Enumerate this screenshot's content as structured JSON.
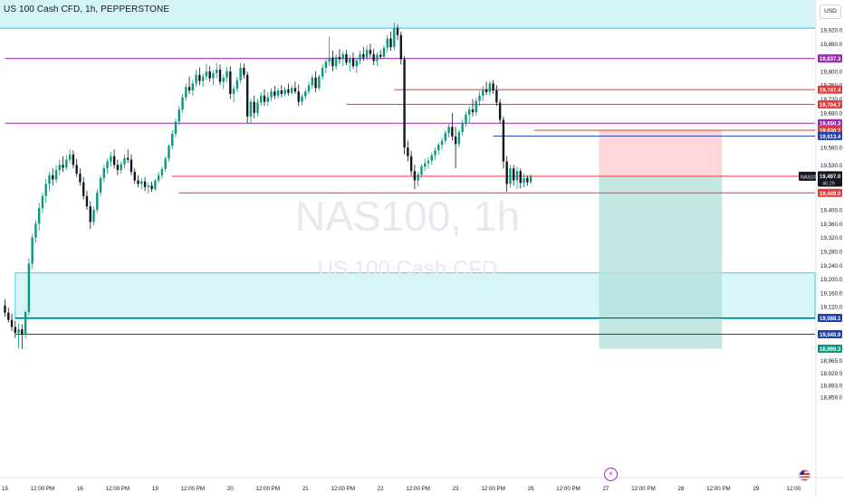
{
  "header": {
    "title": "US 100 Cash CFD, 1h, PEPPERSTONE",
    "currency": "USD",
    "watermark_symbol": "NAS100, 1h",
    "watermark_name": "US 100 Cash CFD"
  },
  "colors": {
    "up": "#089981",
    "down": "#131722",
    "demand_zone": "#b2ebf2",
    "purple_line": "#9c27b0",
    "red_line": "#e53935",
    "blue_line": "#1e40af",
    "stop_zone": "#ffcdd2",
    "target_zone": "#b2dfdb"
  },
  "chart_data": {
    "type": "candlestick",
    "symbol": "NAS100",
    "interval": "1h",
    "y_axis": {
      "ylim": [
        18840,
        19975
      ],
      "tick_labels": [
        "19,920.0",
        "19,880.0",
        "19,800.0",
        "19,760.0",
        "19,720.0",
        "19,680.0",
        "19,580.0",
        "19,530.0",
        "19,400.0",
        "19,360.0",
        "19,320.0",
        "19,280.0",
        "19,240.0",
        "19,200.0",
        "19,160.0",
        "19,120.0",
        "18,965.0",
        "18,929.0",
        "18,893.0",
        "18,859.0"
      ],
      "tick_values": [
        19920,
        19880,
        19800,
        19760,
        19720,
        19680,
        19580,
        19530,
        19400,
        19360,
        19320,
        19280,
        19240,
        19200,
        19160,
        19120,
        18965,
        18929,
        18893,
        18859
      ]
    },
    "x_axis": {
      "tick_labels": [
        "15",
        "12:00 PM",
        "16",
        "12:00 PM",
        "19",
        "12:00 PM",
        "20",
        "12:00 PM",
        "21",
        "12:00 PM",
        "22",
        "12:00 PM",
        "23",
        "12:00 PM",
        "26",
        "12:00 PM",
        "27",
        "12:00 PM",
        "28",
        "12:00 PM",
        "29",
        "12:00"
      ],
      "tick_index": [
        0,
        11,
        22,
        33,
        44,
        55,
        66,
        77,
        88,
        99,
        110,
        121,
        132,
        143,
        154,
        165,
        176,
        187,
        198,
        209,
        220,
        231
      ]
    },
    "candles": [
      {
        "o": 19124,
        "h": 19142,
        "l": 19092,
        "c": 19103
      },
      {
        "o": 19103,
        "h": 19118,
        "l": 19075,
        "c": 19082
      },
      {
        "o": 19082,
        "h": 19100,
        "l": 19050,
        "c": 19062
      },
      {
        "o": 19062,
        "h": 19080,
        "l": 19030,
        "c": 19045
      },
      {
        "o": 19045,
        "h": 19072,
        "l": 19000,
        "c": 19055
      },
      {
        "o": 19055,
        "h": 19070,
        "l": 18998,
        "c": 19040
      },
      {
        "o": 19040,
        "h": 19110,
        "l": 19030,
        "c": 19105
      },
      {
        "o": 19105,
        "h": 19260,
        "l": 19095,
        "c": 19245
      },
      {
        "o": 19245,
        "h": 19330,
        "l": 19230,
        "c": 19320
      },
      {
        "o": 19320,
        "h": 19370,
        "l": 19305,
        "c": 19360
      },
      {
        "o": 19360,
        "h": 19420,
        "l": 19340,
        "c": 19405
      },
      {
        "o": 19405,
        "h": 19450,
        "l": 19390,
        "c": 19440
      },
      {
        "o": 19440,
        "h": 19490,
        "l": 19420,
        "c": 19475
      },
      {
        "o": 19475,
        "h": 19510,
        "l": 19455,
        "c": 19500
      },
      {
        "o": 19500,
        "h": 19520,
        "l": 19470,
        "c": 19488
      },
      {
        "o": 19488,
        "h": 19530,
        "l": 19478,
        "c": 19515
      },
      {
        "o": 19515,
        "h": 19545,
        "l": 19500,
        "c": 19530
      },
      {
        "o": 19530,
        "h": 19555,
        "l": 19510,
        "c": 19522
      },
      {
        "o": 19522,
        "h": 19558,
        "l": 19515,
        "c": 19545
      },
      {
        "o": 19545,
        "h": 19575,
        "l": 19535,
        "c": 19560
      },
      {
        "o": 19560,
        "h": 19572,
        "l": 19520,
        "c": 19530
      },
      {
        "o": 19530,
        "h": 19548,
        "l": 19495,
        "c": 19505
      },
      {
        "o": 19505,
        "h": 19520,
        "l": 19470,
        "c": 19480
      },
      {
        "o": 19480,
        "h": 19495,
        "l": 19430,
        "c": 19440
      },
      {
        "o": 19440,
        "h": 19455,
        "l": 19400,
        "c": 19410
      },
      {
        "o": 19410,
        "h": 19425,
        "l": 19345,
        "c": 19365
      },
      {
        "o": 19365,
        "h": 19410,
        "l": 19355,
        "c": 19400
      },
      {
        "o": 19400,
        "h": 19460,
        "l": 19390,
        "c": 19450
      },
      {
        "o": 19450,
        "h": 19500,
        "l": 19440,
        "c": 19492
      },
      {
        "o": 19492,
        "h": 19530,
        "l": 19480,
        "c": 19520
      },
      {
        "o": 19520,
        "h": 19548,
        "l": 19505,
        "c": 19540
      },
      {
        "o": 19540,
        "h": 19568,
        "l": 19525,
        "c": 19555
      },
      {
        "o": 19555,
        "h": 19575,
        "l": 19520,
        "c": 19530
      },
      {
        "o": 19530,
        "h": 19545,
        "l": 19500,
        "c": 19515
      },
      {
        "o": 19515,
        "h": 19540,
        "l": 19505,
        "c": 19532
      },
      {
        "o": 19532,
        "h": 19560,
        "l": 19520,
        "c": 19550
      },
      {
        "o": 19550,
        "h": 19575,
        "l": 19535,
        "c": 19545
      },
      {
        "o": 19545,
        "h": 19560,
        "l": 19500,
        "c": 19510
      },
      {
        "o": 19510,
        "h": 19520,
        "l": 19475,
        "c": 19485
      },
      {
        "o": 19485,
        "h": 19500,
        "l": 19465,
        "c": 19475
      },
      {
        "o": 19475,
        "h": 19492,
        "l": 19460,
        "c": 19482
      },
      {
        "o": 19482,
        "h": 19495,
        "l": 19455,
        "c": 19466
      },
      {
        "o": 19466,
        "h": 19480,
        "l": 19448,
        "c": 19470
      },
      {
        "o": 19470,
        "h": 19482,
        "l": 19452,
        "c": 19460
      },
      {
        "o": 19460,
        "h": 19490,
        "l": 19455,
        "c": 19485
      },
      {
        "o": 19485,
        "h": 19510,
        "l": 19478,
        "c": 19500
      },
      {
        "o": 19500,
        "h": 19525,
        "l": 19490,
        "c": 19518
      },
      {
        "o": 19518,
        "h": 19555,
        "l": 19510,
        "c": 19548
      },
      {
        "o": 19548,
        "h": 19590,
        "l": 19540,
        "c": 19585
      },
      {
        "o": 19585,
        "h": 19630,
        "l": 19575,
        "c": 19620
      },
      {
        "o": 19620,
        "h": 19665,
        "l": 19610,
        "c": 19655
      },
      {
        "o": 19655,
        "h": 19700,
        "l": 19645,
        "c": 19690
      },
      {
        "o": 19690,
        "h": 19735,
        "l": 19680,
        "c": 19725
      },
      {
        "o": 19725,
        "h": 19765,
        "l": 19715,
        "c": 19755
      },
      {
        "o": 19755,
        "h": 19785,
        "l": 19735,
        "c": 19745
      },
      {
        "o": 19745,
        "h": 19775,
        "l": 19730,
        "c": 19765
      },
      {
        "o": 19765,
        "h": 19805,
        "l": 19755,
        "c": 19790
      },
      {
        "o": 19790,
        "h": 19812,
        "l": 19760,
        "c": 19772
      },
      {
        "o": 19772,
        "h": 19795,
        "l": 19755,
        "c": 19785
      },
      {
        "o": 19785,
        "h": 19822,
        "l": 19775,
        "c": 19800
      },
      {
        "o": 19800,
        "h": 19815,
        "l": 19770,
        "c": 19780
      },
      {
        "o": 19780,
        "h": 19805,
        "l": 19760,
        "c": 19795
      },
      {
        "o": 19795,
        "h": 19825,
        "l": 19780,
        "c": 19805
      },
      {
        "o": 19805,
        "h": 19820,
        "l": 19760,
        "c": 19770
      },
      {
        "o": 19770,
        "h": 19790,
        "l": 19750,
        "c": 19782
      },
      {
        "o": 19782,
        "h": 19812,
        "l": 19770,
        "c": 19800
      },
      {
        "o": 19800,
        "h": 19815,
        "l": 19720,
        "c": 19735
      },
      {
        "o": 19735,
        "h": 19760,
        "l": 19710,
        "c": 19750
      },
      {
        "o": 19750,
        "h": 19785,
        "l": 19740,
        "c": 19775
      },
      {
        "o": 19775,
        "h": 19825,
        "l": 19765,
        "c": 19810
      },
      {
        "o": 19810,
        "h": 19822,
        "l": 19780,
        "c": 19790
      },
      {
        "o": 19790,
        "h": 19800,
        "l": 19650,
        "c": 19670
      },
      {
        "o": 19670,
        "h": 19720,
        "l": 19650,
        "c": 19712
      },
      {
        "o": 19712,
        "h": 19730,
        "l": 19665,
        "c": 19680
      },
      {
        "o": 19680,
        "h": 19720,
        "l": 19670,
        "c": 19710
      },
      {
        "o": 19710,
        "h": 19740,
        "l": 19700,
        "c": 19730
      },
      {
        "o": 19730,
        "h": 19748,
        "l": 19700,
        "c": 19712
      },
      {
        "o": 19712,
        "h": 19738,
        "l": 19700,
        "c": 19725
      },
      {
        "o": 19725,
        "h": 19752,
        "l": 19715,
        "c": 19742
      },
      {
        "o": 19742,
        "h": 19758,
        "l": 19720,
        "c": 19730
      },
      {
        "o": 19730,
        "h": 19752,
        "l": 19722,
        "c": 19745
      },
      {
        "o": 19745,
        "h": 19760,
        "l": 19725,
        "c": 19735
      },
      {
        "o": 19735,
        "h": 19755,
        "l": 19728,
        "c": 19748
      },
      {
        "o": 19748,
        "h": 19765,
        "l": 19730,
        "c": 19738
      },
      {
        "o": 19738,
        "h": 19760,
        "l": 19732,
        "c": 19752
      },
      {
        "o": 19752,
        "h": 19770,
        "l": 19735,
        "c": 19742
      },
      {
        "o": 19742,
        "h": 19762,
        "l": 19700,
        "c": 19712
      },
      {
        "o": 19712,
        "h": 19735,
        "l": 19702,
        "c": 19728
      },
      {
        "o": 19728,
        "h": 19750,
        "l": 19718,
        "c": 19742
      },
      {
        "o": 19742,
        "h": 19770,
        "l": 19735,
        "c": 19760
      },
      {
        "o": 19760,
        "h": 19790,
        "l": 19750,
        "c": 19782
      },
      {
        "o": 19782,
        "h": 19800,
        "l": 19740,
        "c": 19752
      },
      {
        "o": 19752,
        "h": 19790,
        "l": 19745,
        "c": 19785
      },
      {
        "o": 19785,
        "h": 19820,
        "l": 19775,
        "c": 19810
      },
      {
        "o": 19810,
        "h": 19840,
        "l": 19795,
        "c": 19828
      },
      {
        "o": 19828,
        "h": 19900,
        "l": 19815,
        "c": 19840
      },
      {
        "o": 19840,
        "h": 19860,
        "l": 19800,
        "c": 19815
      },
      {
        "o": 19815,
        "h": 19850,
        "l": 19805,
        "c": 19842
      },
      {
        "o": 19842,
        "h": 19865,
        "l": 19822,
        "c": 19835
      },
      {
        "o": 19835,
        "h": 19858,
        "l": 19815,
        "c": 19850
      },
      {
        "o": 19850,
        "h": 19862,
        "l": 19818,
        "c": 19825
      },
      {
        "o": 19825,
        "h": 19848,
        "l": 19800,
        "c": 19838
      },
      {
        "o": 19838,
        "h": 19855,
        "l": 19808,
        "c": 19815
      },
      {
        "o": 19815,
        "h": 19840,
        "l": 19795,
        "c": 19832
      },
      {
        "o": 19832,
        "h": 19860,
        "l": 19820,
        "c": 19850
      },
      {
        "o": 19850,
        "h": 19870,
        "l": 19830,
        "c": 19840
      },
      {
        "o": 19840,
        "h": 19875,
        "l": 19832,
        "c": 19862
      },
      {
        "o": 19862,
        "h": 19880,
        "l": 19840,
        "c": 19850
      },
      {
        "o": 19850,
        "h": 19865,
        "l": 19818,
        "c": 19830
      },
      {
        "o": 19830,
        "h": 19855,
        "l": 19815,
        "c": 19848
      },
      {
        "o": 19848,
        "h": 19862,
        "l": 19835,
        "c": 19842
      },
      {
        "o": 19842,
        "h": 19875,
        "l": 19835,
        "c": 19868
      },
      {
        "o": 19868,
        "h": 19905,
        "l": 19855,
        "c": 19895
      },
      {
        "o": 19895,
        "h": 19915,
        "l": 19860,
        "c": 19870
      },
      {
        "o": 19870,
        "h": 19940,
        "l": 19860,
        "c": 19925
      },
      {
        "o": 19925,
        "h": 19935,
        "l": 19890,
        "c": 19905
      },
      {
        "o": 19905,
        "h": 19915,
        "l": 19820,
        "c": 19835
      },
      {
        "o": 19835,
        "h": 19845,
        "l": 19560,
        "c": 19580
      },
      {
        "o": 19580,
        "h": 19600,
        "l": 19540,
        "c": 19555
      },
      {
        "o": 19555,
        "h": 19570,
        "l": 19500,
        "c": 19512
      },
      {
        "o": 19512,
        "h": 19530,
        "l": 19460,
        "c": 19485
      },
      {
        "o": 19485,
        "h": 19510,
        "l": 19468,
        "c": 19502
      },
      {
        "o": 19502,
        "h": 19532,
        "l": 19492,
        "c": 19525
      },
      {
        "o": 19525,
        "h": 19548,
        "l": 19512,
        "c": 19535
      },
      {
        "o": 19535,
        "h": 19552,
        "l": 19518,
        "c": 19542
      },
      {
        "o": 19542,
        "h": 19565,
        "l": 19530,
        "c": 19558
      },
      {
        "o": 19558,
        "h": 19580,
        "l": 19545,
        "c": 19572
      },
      {
        "o": 19572,
        "h": 19595,
        "l": 19560,
        "c": 19588
      },
      {
        "o": 19588,
        "h": 19608,
        "l": 19575,
        "c": 19600
      },
      {
        "o": 19600,
        "h": 19630,
        "l": 19590,
        "c": 19622
      },
      {
        "o": 19622,
        "h": 19648,
        "l": 19610,
        "c": 19640
      },
      {
        "o": 19640,
        "h": 19680,
        "l": 19600,
        "c": 19612
      },
      {
        "o": 19612,
        "h": 19640,
        "l": 19520,
        "c": 19590
      },
      {
        "o": 19590,
        "h": 19632,
        "l": 19580,
        "c": 19625
      },
      {
        "o": 19625,
        "h": 19660,
        "l": 19615,
        "c": 19650
      },
      {
        "o": 19650,
        "h": 19685,
        "l": 19640,
        "c": 19675
      },
      {
        "o": 19675,
        "h": 19700,
        "l": 19650,
        "c": 19690
      },
      {
        "o": 19690,
        "h": 19720,
        "l": 19670,
        "c": 19682
      },
      {
        "o": 19682,
        "h": 19725,
        "l": 19672,
        "c": 19715
      },
      {
        "o": 19715,
        "h": 19742,
        "l": 19700,
        "c": 19730
      },
      {
        "o": 19730,
        "h": 19758,
        "l": 19715,
        "c": 19748
      },
      {
        "o": 19748,
        "h": 19770,
        "l": 19732,
        "c": 19740
      },
      {
        "o": 19740,
        "h": 19772,
        "l": 19730,
        "c": 19765
      },
      {
        "o": 19765,
        "h": 19775,
        "l": 19735,
        "c": 19745
      },
      {
        "o": 19745,
        "h": 19760,
        "l": 19700,
        "c": 19710
      },
      {
        "o": 19710,
        "h": 19720,
        "l": 19650,
        "c": 19660
      },
      {
        "o": 19660,
        "h": 19670,
        "l": 19520,
        "c": 19540
      },
      {
        "o": 19540,
        "h": 19555,
        "l": 19452,
        "c": 19475
      },
      {
        "o": 19475,
        "h": 19530,
        "l": 19465,
        "c": 19520
      },
      {
        "o": 19520,
        "h": 19530,
        "l": 19470,
        "c": 19485
      },
      {
        "o": 19485,
        "h": 19525,
        "l": 19460,
        "c": 19512
      },
      {
        "o": 19512,
        "h": 19520,
        "l": 19462,
        "c": 19478
      },
      {
        "o": 19478,
        "h": 19505,
        "l": 19465,
        "c": 19492
      },
      {
        "o": 19492,
        "h": 19500,
        "l": 19470,
        "c": 19480
      },
      {
        "o": 19480,
        "h": 19502,
        "l": 19475,
        "c": 19497
      }
    ],
    "levels": [
      {
        "label": "19,837.3",
        "value": 19837.3,
        "color": "purple",
        "start": 0
      },
      {
        "label": "19,747.4",
        "value": 19747.4,
        "color": "red",
        "start": 114
      },
      {
        "label": "19,704.7",
        "value": 19704.7,
        "color": "red",
        "start": 100
      },
      {
        "label": "19,650.3",
        "value": 19650.3,
        "color": "purple",
        "start": 0
      },
      {
        "label": "19,630.1",
        "value": 19630.1,
        "color": "red",
        "start": 155
      },
      {
        "label": "19,613.4",
        "value": 19613.4,
        "color": "blue",
        "start": 143
      },
      {
        "label": "19,497.0",
        "value": 19497.0,
        "color": "red",
        "start": 49
      },
      {
        "label": "19,449.0",
        "value": 19449.0,
        "color": "red",
        "start": 51
      },
      {
        "label": "19,088.1",
        "value": 19088.1,
        "color": "blue",
        "start": 3
      },
      {
        "label": "19,040.9",
        "value": 19040.9,
        "color": "blue",
        "start": 3
      },
      {
        "label": "18,999.3",
        "value": 18999.3,
        "color": "teal",
        "start": null
      }
    ],
    "supply_zone": {
      "top": 19975,
      "bottom": 19925
    },
    "demand_zone": {
      "top": 19218,
      "bottom": 19085
    },
    "position": {
      "entry": 19497.0,
      "stop": 19630.1,
      "target": 18999.3,
      "start_index": 174,
      "end_index": 210
    },
    "current_price": {
      "symbol": "NAS100",
      "price": "19,497.0",
      "countdown": "46:29"
    }
  }
}
